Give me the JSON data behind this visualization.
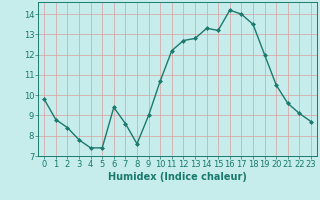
{
  "x": [
    0,
    1,
    2,
    3,
    4,
    5,
    6,
    7,
    8,
    9,
    10,
    11,
    12,
    13,
    14,
    15,
    16,
    17,
    18,
    19,
    20,
    21,
    22,
    23
  ],
  "y": [
    9.8,
    8.8,
    8.4,
    7.8,
    7.4,
    7.4,
    9.4,
    8.6,
    7.6,
    9.0,
    10.7,
    12.2,
    12.7,
    12.8,
    13.3,
    13.2,
    14.2,
    14.0,
    13.5,
    12.0,
    10.5,
    9.6,
    9.1,
    8.7
  ],
  "line_color": "#1a7a6e",
  "marker": "D",
  "marker_size": 2,
  "bg_color": "#c6eceb",
  "grid_color": "#d9a0a0",
  "xlabel": "Humidex (Indice chaleur)",
  "xlabel_fontsize": 7,
  "tick_fontsize": 6,
  "xlim": [
    -0.5,
    23.5
  ],
  "ylim": [
    7,
    14.6
  ],
  "yticks": [
    7,
    8,
    9,
    10,
    11,
    12,
    13,
    14
  ],
  "xticks": [
    0,
    1,
    2,
    3,
    4,
    5,
    6,
    7,
    8,
    9,
    10,
    11,
    12,
    13,
    14,
    15,
    16,
    17,
    18,
    19,
    20,
    21,
    22,
    23
  ],
  "linewidth": 1.0
}
